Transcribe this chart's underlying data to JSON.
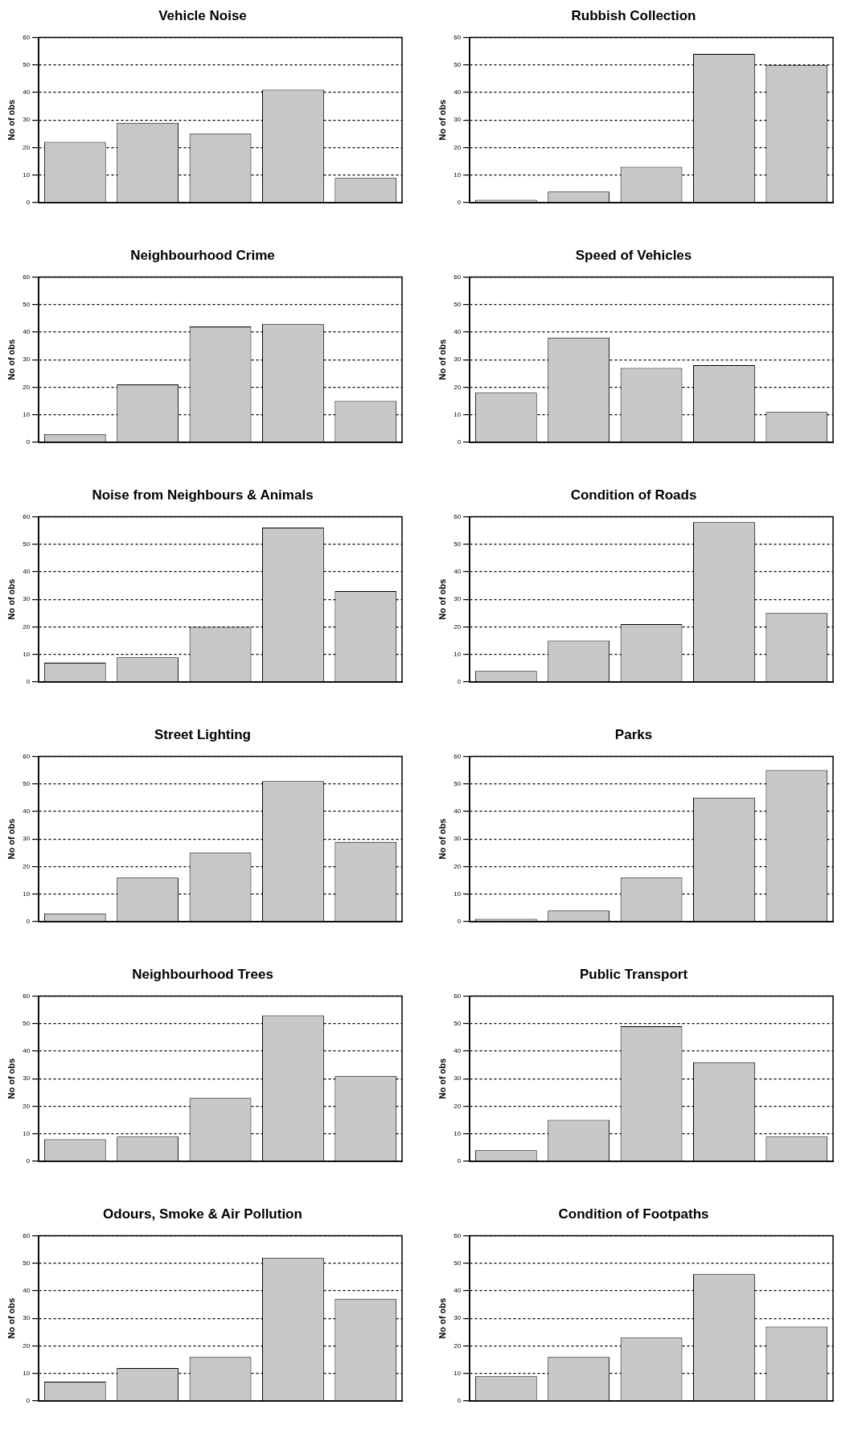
{
  "chart_data": [
    {
      "type": "bar",
      "title": "Vehicle Noise",
      "ylabel": "No of obs",
      "categories": [
        null,
        null,
        null,
        null,
        null
      ],
      "values": [
        22,
        29,
        25,
        41,
        9
      ],
      "color": "#c8c8c8",
      "ylim": [
        0,
        60
      ],
      "yticks": [
        0,
        10,
        20,
        30,
        40,
        50,
        60
      ],
      "grid": "y",
      "tick_labels": "y"
    },
    {
      "type": "bar",
      "title": "Rubbish Collection",
      "ylabel": "No of obs",
      "categories": [
        null,
        null,
        null,
        null,
        null
      ],
      "values": [
        1,
        4,
        13,
        54,
        50
      ],
      "color": "#c8c8c8",
      "ylim": [
        0,
        60
      ],
      "yticks": [
        0,
        10,
        20,
        30,
        40,
        50,
        60
      ],
      "grid": "y",
      "tick_labels": "y"
    },
    {
      "type": "bar",
      "title": "Neighbourhood Crime",
      "ylabel": "No of obs",
      "categories": [
        null,
        null,
        null,
        null,
        null
      ],
      "values": [
        3,
        21,
        42,
        43,
        15
      ],
      "color": "#c8c8c8",
      "ylim": [
        0,
        60
      ],
      "yticks": [
        0,
        10,
        20,
        30,
        40,
        50,
        60
      ],
      "grid": "y",
      "tick_labels": "y"
    },
    {
      "type": "bar",
      "title": "Speed of Vehicles",
      "ylabel": "No of obs",
      "categories": [
        null,
        null,
        null,
        null,
        null
      ],
      "values": [
        18,
        38,
        27,
        28,
        11
      ],
      "color": "#c8c8c8",
      "ylim": [
        0,
        60
      ],
      "yticks": [
        0,
        10,
        20,
        30,
        40,
        50,
        60
      ],
      "grid": "y",
      "tick_labels": "y"
    },
    {
      "type": "bar",
      "title": "Noise from Neighbours & Animals",
      "ylabel": "No of obs",
      "categories": [
        null,
        null,
        null,
        null,
        null
      ],
      "values": [
        7,
        9,
        20,
        56,
        33
      ],
      "color": "#c8c8c8",
      "ylim": [
        0,
        60
      ],
      "yticks": [
        0,
        10,
        20,
        30,
        40,
        50,
        60
      ],
      "grid": "y",
      "tick_labels": "y"
    },
    {
      "type": "bar",
      "title": "Condition of Roads",
      "ylabel": "No of obs",
      "categories": [
        null,
        null,
        null,
        null,
        null
      ],
      "values": [
        4,
        15,
        21,
        58,
        25
      ],
      "color": "#c8c8c8",
      "ylim": [
        0,
        60
      ],
      "yticks": [
        0,
        10,
        20,
        30,
        40,
        50,
        60
      ],
      "grid": "y",
      "tick_labels": "y"
    },
    {
      "type": "bar",
      "title": "Street Lighting",
      "ylabel": "No of obs",
      "categories": [
        null,
        null,
        null,
        null,
        null
      ],
      "values": [
        3,
        16,
        25,
        51,
        29
      ],
      "color": "#c8c8c8",
      "ylim": [
        0,
        60
      ],
      "yticks": [
        0,
        10,
        20,
        30,
        40,
        50,
        60
      ],
      "grid": "y",
      "tick_labels": "y"
    },
    {
      "type": "bar",
      "title": "Parks",
      "ylabel": "No of obs",
      "categories": [
        null,
        null,
        null,
        null,
        null
      ],
      "values": [
        1,
        4,
        16,
        45,
        55
      ],
      "color": "#c8c8c8",
      "ylim": [
        0,
        60
      ],
      "yticks": [
        0,
        10,
        20,
        30,
        40,
        50,
        60
      ],
      "grid": "y",
      "tick_labels": "y"
    },
    {
      "type": "bar",
      "title": "Neighbourhood Trees",
      "ylabel": "No of obs",
      "categories": [
        null,
        null,
        null,
        null,
        null
      ],
      "values": [
        8,
        9,
        23,
        53,
        31
      ],
      "color": "#c8c8c8",
      "ylim": [
        0,
        60
      ],
      "yticks": [
        0,
        10,
        20,
        30,
        40,
        50,
        60
      ],
      "grid": "y",
      "tick_labels": "y"
    },
    {
      "type": "bar",
      "title": "Public Transport",
      "ylabel": "No of obs",
      "categories": [
        null,
        null,
        null,
        null,
        null
      ],
      "values": [
        4,
        15,
        49,
        36,
        9
      ],
      "color": "#c8c8c8",
      "ylim": [
        0,
        60
      ],
      "yticks": [
        0,
        10,
        20,
        30,
        40,
        50,
        60
      ],
      "grid": "y",
      "tick_labels": "y"
    },
    {
      "type": "bar",
      "title": "Odours, Smoke & Air Pollution",
      "ylabel": "No of obs",
      "categories": [
        null,
        null,
        null,
        null,
        null
      ],
      "values": [
        7,
        12,
        16,
        52,
        37
      ],
      "color": "#c8c8c8",
      "ylim": [
        0,
        60
      ],
      "yticks": [
        0,
        10,
        20,
        30,
        40,
        50,
        60
      ],
      "grid": "y",
      "tick_labels": "y"
    },
    {
      "type": "bar",
      "title": "Condition of Footpaths",
      "ylabel": "No of obs",
      "categories": [
        null,
        null,
        null,
        null,
        null
      ],
      "values": [
        9,
        16,
        23,
        46,
        27
      ],
      "color": "#c8c8c8",
      "ylim": [
        0,
        60
      ],
      "yticks": [
        0,
        10,
        20,
        30,
        40,
        50,
        60
      ],
      "grid": "y",
      "tick_labels": "y"
    }
  ]
}
